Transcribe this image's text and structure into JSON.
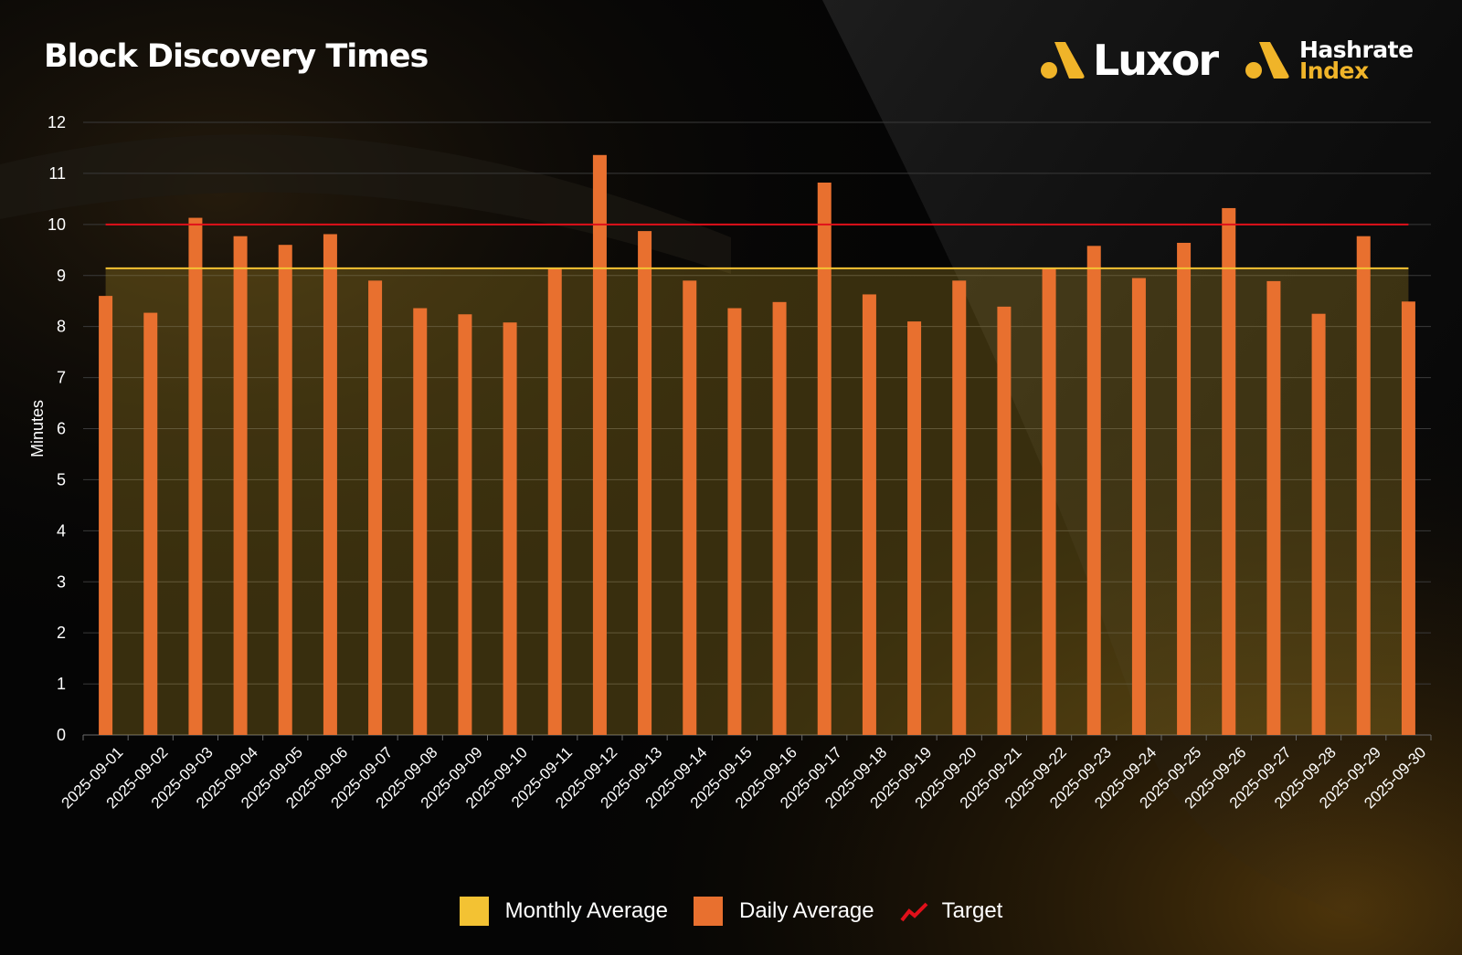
{
  "title": "Block Discovery Times",
  "brands": {
    "luxor": "Luxor",
    "hashrate_index_top": "Hashrate",
    "hashrate_index_bottom": "Index"
  },
  "colors": {
    "daily": "#e8702f",
    "monthly": "#f3c233",
    "monthly_fill": "rgba(243,194,51,0.22)",
    "target": "#e0101a",
    "brand_accent": "#f0b429"
  },
  "legend": [
    {
      "label": "Monthly Average",
      "swatch": "monthly"
    },
    {
      "label": "Daily Average",
      "swatch": "daily"
    },
    {
      "label": "Target",
      "swatch": "target"
    }
  ],
  "chart_data": {
    "type": "bar",
    "title": "Block Discovery Times",
    "xlabel": "",
    "ylabel": "Minutes",
    "ylim": [
      0,
      12
    ],
    "yticks": [
      0,
      1,
      2,
      3,
      4,
      5,
      6,
      7,
      8,
      9,
      10,
      11,
      12
    ],
    "grid": true,
    "legend_position": "bottom",
    "categories": [
      "2025-09-01",
      "2025-09-02",
      "2025-09-03",
      "2025-09-04",
      "2025-09-05",
      "2025-09-06",
      "2025-09-07",
      "2025-09-08",
      "2025-09-09",
      "2025-09-10",
      "2025-09-11",
      "2025-09-12",
      "2025-09-13",
      "2025-09-14",
      "2025-09-15",
      "2025-09-16",
      "2025-09-17",
      "2025-09-18",
      "2025-09-19",
      "2025-09-20",
      "2025-09-21",
      "2025-09-22",
      "2025-09-23",
      "2025-09-24",
      "2025-09-25",
      "2025-09-26",
      "2025-09-27",
      "2025-09-28",
      "2025-09-29",
      "2025-09-30"
    ],
    "series": [
      {
        "name": "Daily Average",
        "type": "bar",
        "values": [
          8.6,
          8.27,
          10.13,
          9.77,
          9.6,
          9.81,
          8.9,
          8.36,
          8.24,
          8.08,
          9.13,
          11.36,
          9.87,
          8.9,
          8.36,
          8.48,
          10.82,
          8.63,
          8.1,
          8.9,
          8.39,
          9.15,
          9.58,
          8.95,
          9.64,
          10.32,
          8.89,
          8.25,
          9.77,
          8.49
        ]
      },
      {
        "name": "Monthly Average",
        "type": "area",
        "value": 9.14
      },
      {
        "name": "Target",
        "type": "line",
        "value": 10
      }
    ]
  }
}
